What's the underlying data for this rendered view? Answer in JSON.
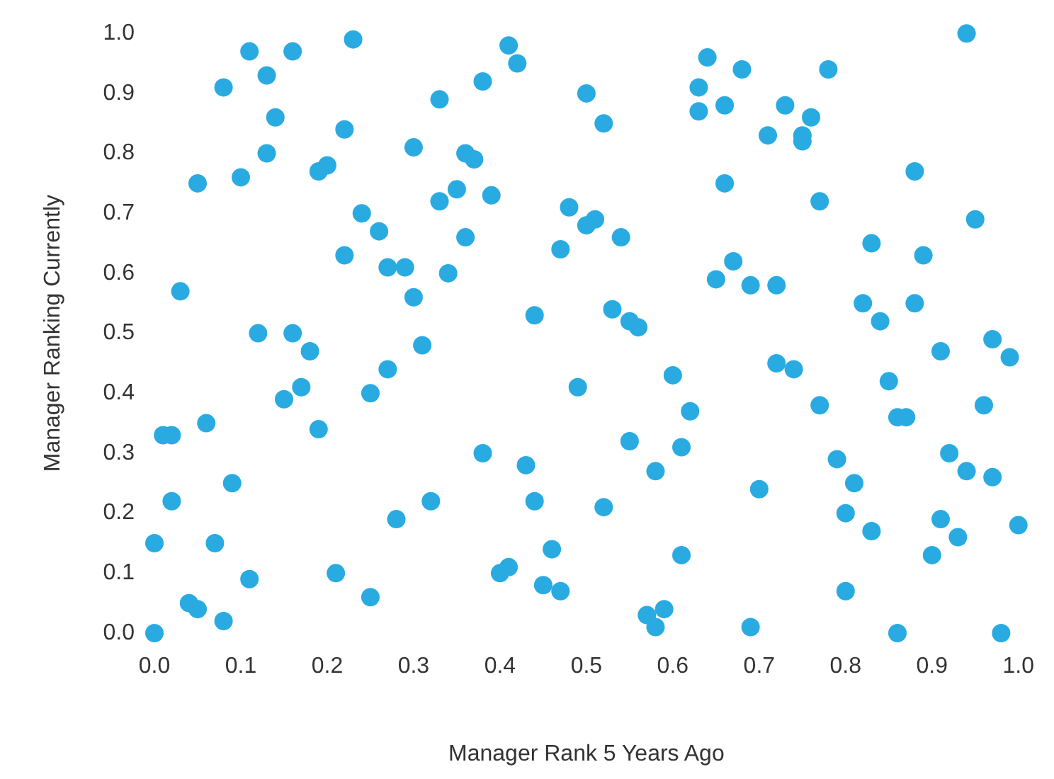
{
  "chart_data": {
    "type": "scatter",
    "xlabel": "Manager Rank 5 Years Ago",
    "ylabel": "Manager Ranking Currently",
    "xlim": [
      0,
      1
    ],
    "ylim": [
      0,
      1
    ],
    "xticks": [
      {
        "value": 0,
        "label": "0.0"
      },
      {
        "value": 0.1,
        "label": "0.1"
      },
      {
        "value": 0.2,
        "label": "0.2"
      },
      {
        "value": 0.3,
        "label": "0.3"
      },
      {
        "value": 0.4,
        "label": "0.4"
      },
      {
        "value": 0.5,
        "label": "0.5"
      },
      {
        "value": 0.6,
        "label": "0.6"
      },
      {
        "value": 0.7,
        "label": "0.7"
      },
      {
        "value": 0.8,
        "label": "0.8"
      },
      {
        "value": 0.9,
        "label": "0.9"
      },
      {
        "value": 1,
        "label": "1.0"
      }
    ],
    "yticks": [
      {
        "value": 0,
        "label": "0.0"
      },
      {
        "value": 0.1,
        "label": "0.1"
      },
      {
        "value": 0.2,
        "label": "0.2"
      },
      {
        "value": 0.3,
        "label": "0.3"
      },
      {
        "value": 0.4,
        "label": "0.4"
      },
      {
        "value": 0.5,
        "label": "0.5"
      },
      {
        "value": 0.6,
        "label": "0.6"
      },
      {
        "value": 0.7,
        "label": "0.7"
      },
      {
        "value": 0.8,
        "label": "0.8"
      },
      {
        "value": 0.9,
        "label": "0.9"
      },
      {
        "value": 1,
        "label": "1.0"
      }
    ],
    "grid": false,
    "marker": "circle",
    "series": [
      {
        "color": "#29abe2",
        "x": [
          0.0,
          0.0,
          0.01,
          0.02,
          0.02,
          0.03,
          0.04,
          0.05,
          0.05,
          0.06,
          0.07,
          0.08,
          0.08,
          0.09,
          0.1,
          0.11,
          0.11,
          0.12,
          0.13,
          0.13,
          0.14,
          0.15,
          0.16,
          0.16,
          0.17,
          0.18,
          0.19,
          0.19,
          0.2,
          0.21,
          0.22,
          0.22,
          0.23,
          0.24,
          0.25,
          0.25,
          0.26,
          0.27,
          0.27,
          0.28,
          0.29,
          0.3,
          0.3,
          0.31,
          0.32,
          0.33,
          0.33,
          0.34,
          0.35,
          0.36,
          0.36,
          0.37,
          0.38,
          0.38,
          0.39,
          0.4,
          0.41,
          0.41,
          0.42,
          0.43,
          0.44,
          0.44,
          0.45,
          0.46,
          0.47,
          0.47,
          0.48,
          0.49,
          0.5,
          0.5,
          0.51,
          0.52,
          0.52,
          0.53,
          0.54,
          0.55,
          0.55,
          0.56,
          0.57,
          0.58,
          0.58,
          0.59,
          0.6,
          0.61,
          0.61,
          0.62,
          0.63,
          0.63,
          0.64,
          0.65,
          0.66,
          0.66,
          0.67,
          0.68,
          0.69,
          0.69,
          0.7,
          0.71,
          0.72,
          0.72,
          0.73,
          0.74,
          0.75,
          0.75,
          0.76,
          0.77,
          0.77,
          0.78,
          0.79,
          0.8,
          0.8,
          0.81,
          0.82,
          0.83,
          0.83,
          0.84,
          0.85,
          0.86,
          0.86,
          0.87,
          0.88,
          0.88,
          0.89,
          0.9,
          0.91,
          0.91,
          0.92,
          0.93,
          0.94,
          0.94,
          0.95,
          0.96,
          0.97,
          0.97,
          0.98,
          0.99,
          1.0
        ],
        "values": [
          0.15,
          0.0,
          0.33,
          0.33,
          0.22,
          0.57,
          0.05,
          0.04,
          0.75,
          0.35,
          0.15,
          0.91,
          0.02,
          0.25,
          0.76,
          0.97,
          0.09,
          0.5,
          0.93,
          0.8,
          0.86,
          0.39,
          0.97,
          0.5,
          0.41,
          0.47,
          0.77,
          0.34,
          0.78,
          0.1,
          0.84,
          0.63,
          0.99,
          0.7,
          0.4,
          0.06,
          0.67,
          0.61,
          0.44,
          0.19,
          0.61,
          0.81,
          0.56,
          0.48,
          0.22,
          0.89,
          0.72,
          0.6,
          0.74,
          0.8,
          0.66,
          0.79,
          0.92,
          0.3,
          0.73,
          0.1,
          0.98,
          0.11,
          0.95,
          0.28,
          0.53,
          0.22,
          0.08,
          0.14,
          0.64,
          0.07,
          0.71,
          0.41,
          0.9,
          0.68,
          0.69,
          0.85,
          0.21,
          0.54,
          0.66,
          0.52,
          0.32,
          0.51,
          0.03,
          0.27,
          0.01,
          0.04,
          0.43,
          0.31,
          0.13,
          0.37,
          0.91,
          0.87,
          0.96,
          0.59,
          0.88,
          0.75,
          0.62,
          0.94,
          0.58,
          0.01,
          0.24,
          0.83,
          0.58,
          0.45,
          0.88,
          0.44,
          0.83,
          0.82,
          0.86,
          0.72,
          0.38,
          0.94,
          0.29,
          0.2,
          0.07,
          0.25,
          0.55,
          0.65,
          0.17,
          0.52,
          0.42,
          0.36,
          0.0,
          0.36,
          0.77,
          0.55,
          0.63,
          0.13,
          0.47,
          0.19,
          0.3,
          0.16,
          1.0,
          0.27,
          0.69,
          0.38,
          0.49,
          0.26,
          0.0,
          0.46,
          0.18
        ]
      }
    ]
  }
}
